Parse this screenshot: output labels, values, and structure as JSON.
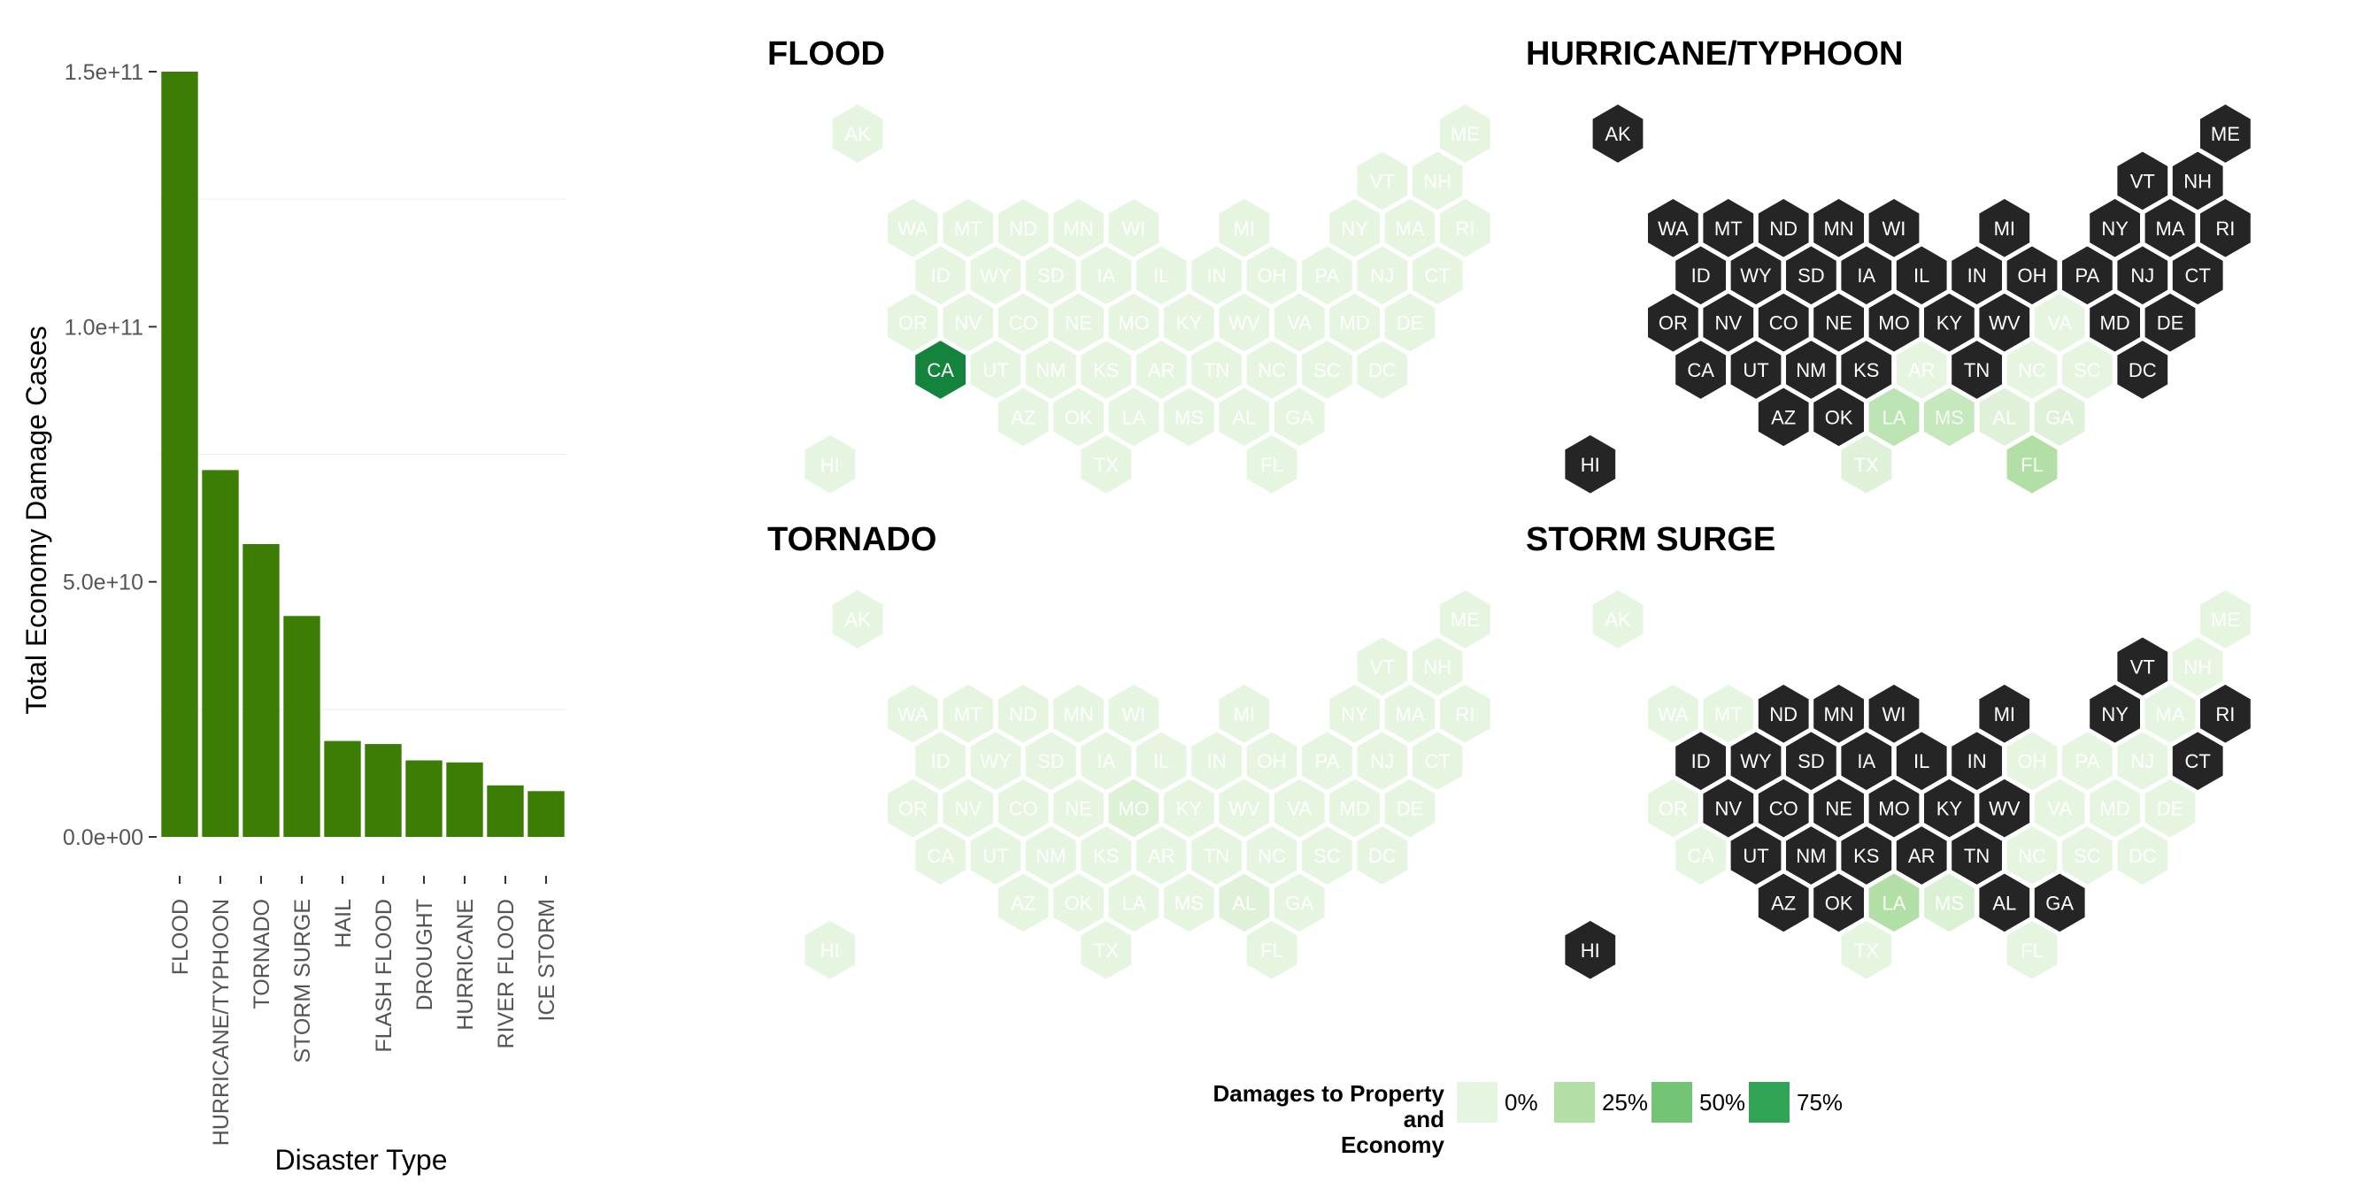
{
  "chart_data": [
    {
      "type": "bar",
      "xlabel": "Disaster Type",
      "ylabel": "Total Economy Damage Cases",
      "ylim": [
        0,
        150000000000
      ],
      "yticks": [
        0,
        50000000000,
        100000000000,
        150000000000
      ],
      "ytick_labels": [
        "0.0e+00",
        "5.0e+10",
        "1.0e+11",
        "1.5e+11"
      ],
      "categories": [
        "FLOOD",
        "HURRICANE/TYPHOON",
        "TORNADO",
        "STORM SURGE",
        "HAIL",
        "FLASH FLOOD",
        "DROUGHT",
        "HURRICANE",
        "RIVER FLOOD",
        "ICE STORM"
      ],
      "values": [
        150000000000,
        71900000000,
        57400000000,
        43300000000,
        18800000000,
        18200000000,
        15000000000,
        14600000000,
        10100000000,
        8970000000
      ],
      "bar_color": "#3c7d06",
      "grid": true
    },
    {
      "type": "heatmap",
      "layout": "hexagon tile map of US states",
      "panels": [
        {
          "title": "FLOOD",
          "values": {
            "AK": 0,
            "ME": 0,
            "VT": 0,
            "NH": 0,
            "WA": 0,
            "MT": 0,
            "ND": 0,
            "MN": 0,
            "WI": 0,
            "MI": 0,
            "NY": 0,
            "MA": 0,
            "RI": 0,
            "ID": 0,
            "WY": 0,
            "SD": 0,
            "IA": 0,
            "IL": 0,
            "IN": 0,
            "OH": 0,
            "PA": 0,
            "NJ": 0,
            "CT": 0,
            "OR": 0,
            "NV": 0,
            "CO": 0,
            "NE": 0,
            "MO": 0,
            "KY": 0,
            "WV": 0,
            "VA": 0,
            "MD": 0,
            "DE": 0,
            "CA": 90,
            "UT": 0,
            "NM": 0,
            "KS": 0,
            "AR": 0,
            "TN": 0,
            "NC": 0,
            "SC": 0,
            "DC": 0,
            "AZ": 0,
            "OK": 0,
            "LA": 0,
            "MS": 0,
            "AL": 0,
            "GA": 0,
            "HI": 0,
            "TX": 0,
            "FL": 0
          }
        },
        {
          "title": "HURRICANE/TYPHOON",
          "values": {
            "AK": null,
            "ME": null,
            "VT": null,
            "NH": null,
            "WA": null,
            "MT": null,
            "ND": null,
            "MN": null,
            "WI": null,
            "MI": null,
            "NY": null,
            "MA": null,
            "RI": null,
            "ID": null,
            "WY": null,
            "SD": null,
            "IA": null,
            "IL": null,
            "IN": null,
            "OH": null,
            "PA": null,
            "NJ": null,
            "CT": null,
            "OR": null,
            "NV": null,
            "CO": null,
            "NE": null,
            "MO": null,
            "KY": null,
            "WV": null,
            "VA": 0,
            "MD": null,
            "DE": null,
            "CA": null,
            "UT": null,
            "NM": null,
            "KS": null,
            "AR": 0,
            "TN": null,
            "NC": 0,
            "SC": 0,
            "DC": null,
            "AZ": null,
            "OK": null,
            "LA": 20,
            "MS": 15,
            "AL": 3,
            "GA": 3,
            "HI": null,
            "TX": 3,
            "FL": 25
          }
        },
        {
          "title": "TORNADO",
          "values": {
            "AK": 0,
            "ME": 0,
            "VT": 0,
            "NH": 0,
            "WA": 0,
            "MT": 0,
            "ND": 0,
            "MN": 0,
            "WI": 0,
            "MI": 0,
            "NY": 0,
            "MA": 0,
            "RI": 0,
            "ID": 0,
            "WY": 0,
            "SD": 0,
            "IA": 0,
            "IL": 0,
            "IN": 0,
            "OH": 0,
            "PA": 0,
            "NJ": 0,
            "CT": 0,
            "OR": 0,
            "NV": 0,
            "CO": 0,
            "NE": 0,
            "MO": 4,
            "KY": 0,
            "WV": 0,
            "VA": 0,
            "MD": 0,
            "DE": 0,
            "CA": 0,
            "UT": 0,
            "NM": 0,
            "KS": 0,
            "AR": 0,
            "TN": 0,
            "NC": 0,
            "SC": 0,
            "DC": 0,
            "AZ": 0,
            "OK": 0,
            "LA": 0,
            "MS": 0,
            "AL": 3,
            "GA": 0,
            "HI": 0,
            "TX": 0,
            "FL": 0
          }
        },
        {
          "title": "STORM SURGE",
          "values": {
            "AK": 0,
            "ME": 0,
            "VT": null,
            "NH": 0,
            "WA": 0,
            "MT": 0,
            "ND": null,
            "MN": null,
            "WI": null,
            "MI": null,
            "NY": null,
            "MA": 0,
            "RI": null,
            "ID": null,
            "WY": null,
            "SD": null,
            "IA": null,
            "IL": null,
            "IN": null,
            "OH": 0,
            "PA": 0,
            "NJ": 0,
            "CT": null,
            "OR": 0,
            "NV": null,
            "CO": null,
            "NE": null,
            "MO": null,
            "KY": null,
            "WV": null,
            "VA": 0,
            "MD": 0,
            "DE": 0,
            "CA": 0,
            "UT": null,
            "NM": null,
            "KS": null,
            "AR": null,
            "TN": null,
            "NC": 0,
            "SC": 0,
            "DC": 0,
            "AZ": null,
            "OK": null,
            "LA": 25,
            "MS": 5,
            "AL": null,
            "GA": null,
            "HI": null,
            "TX": 0,
            "FL": 0
          }
        }
      ],
      "legend": {
        "title": "Damages to Property and Economy",
        "title_lines": [
          "Damages to Property",
          "and",
          "Economy"
        ],
        "entries": [
          {
            "label": "0%",
            "value": 0,
            "color": "#e5f5e0"
          },
          {
            "label": "25%",
            "value": 25,
            "color": "#b2dfa6"
          },
          {
            "label": "50%",
            "value": 50,
            "color": "#74c476"
          },
          {
            "label": "75%",
            "value": 75,
            "color": "#31a354"
          }
        ],
        "placement": "bottom",
        "missing_color": "#252525",
        "max_color": "#006d2c"
      }
    }
  ]
}
